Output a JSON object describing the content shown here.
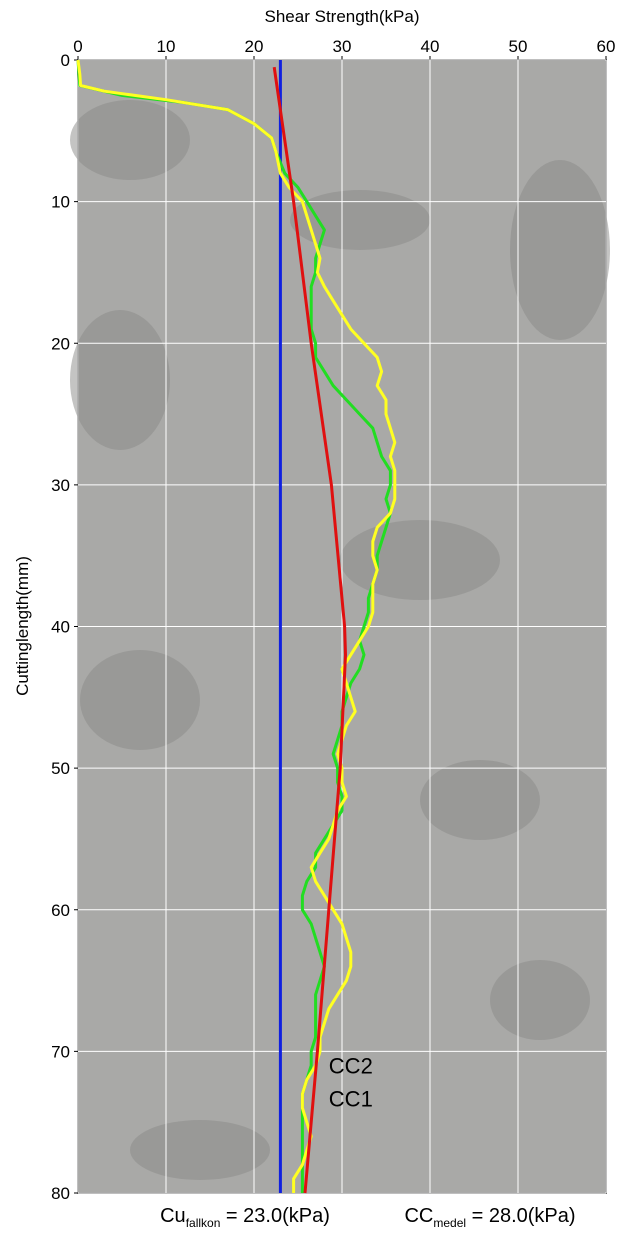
{
  "chart_data": {
    "type": "line",
    "x_label": "Shear Strength(kPa)",
    "y_label": "Cuttinglength(mm)",
    "xlim": [
      0,
      60
    ],
    "xticks": [
      0,
      10,
      20,
      30,
      40,
      50,
      60
    ],
    "ylim": [
      0,
      80
    ],
    "yticks": [
      0,
      10,
      20,
      30,
      40,
      50,
      60,
      70,
      80
    ],
    "y_inverted": true,
    "x_axis_position": "top",
    "grid": true,
    "series": [
      {
        "name": "CC2",
        "color": "#22dd22",
        "y": [
          0,
          1.8,
          2.5,
          3,
          3.5,
          4.5,
          5.5,
          6.5,
          8,
          9,
          10,
          11,
          12,
          13,
          14,
          15,
          16,
          17,
          18,
          19,
          20,
          21,
          22,
          23,
          24,
          25,
          26,
          27,
          28,
          29,
          30,
          31,
          32,
          33,
          34,
          35,
          36,
          37,
          38,
          39,
          40,
          41,
          42,
          43,
          44,
          45,
          46,
          47,
          48,
          49,
          50,
          51,
          52,
          53,
          54,
          55,
          56,
          57,
          58,
          59,
          60,
          61,
          62,
          63,
          64,
          65,
          66,
          67,
          68,
          69,
          70,
          71,
          72,
          73,
          74,
          75,
          76,
          77,
          78,
          79,
          80
        ],
        "x": [
          0,
          0.2,
          5,
          12,
          17,
          20,
          22,
          22.5,
          23.5,
          25,
          26,
          27,
          28,
          27.5,
          27,
          27,
          26.5,
          26.5,
          26.5,
          26.5,
          27,
          27,
          28,
          29,
          30.5,
          32,
          33.5,
          34,
          34.5,
          35.5,
          35.5,
          35,
          35.5,
          35,
          34.5,
          34,
          34,
          33.5,
          33,
          33,
          32.5,
          32,
          32.5,
          32,
          31,
          30.5,
          30,
          30,
          29.5,
          29,
          29.5,
          29.5,
          30,
          30,
          29,
          28,
          27,
          27,
          26,
          25.5,
          25.5,
          26.5,
          27,
          27.5,
          28,
          27.5,
          27,
          27,
          27,
          27,
          26.5,
          26.5,
          26,
          25.5,
          25.5,
          25.5,
          25.5,
          25.5,
          25.5,
          25.5,
          25.5
        ]
      },
      {
        "name": "CC1",
        "color": "#ffff22",
        "y": [
          0,
          1,
          1.8,
          2.2,
          2.8,
          3.5,
          4.5,
          5.5,
          6.5,
          8,
          9,
          10,
          11,
          12,
          13,
          14,
          15,
          16,
          17,
          18,
          19,
          20,
          21,
          22,
          23,
          24,
          25,
          26,
          27,
          28,
          29,
          30,
          31,
          32,
          33,
          34,
          35,
          36,
          37,
          38,
          39,
          40,
          41,
          42,
          43,
          44,
          45,
          46,
          47,
          48,
          49,
          50,
          51,
          52,
          53,
          54,
          55,
          56,
          57,
          58,
          59,
          60,
          61,
          62,
          63,
          64,
          65,
          66,
          67,
          68,
          69,
          70,
          71,
          72,
          73,
          74,
          75,
          76,
          77,
          78,
          79,
          80
        ],
        "x": [
          0,
          0.2,
          0.3,
          3,
          10,
          17,
          20,
          22,
          22.5,
          23,
          24,
          25.5,
          26,
          26.5,
          27,
          27.5,
          27.2,
          28,
          29,
          30,
          31,
          32.5,
          34,
          34.5,
          34,
          35,
          35,
          35.5,
          36,
          35.5,
          36,
          36,
          36,
          35.5,
          34,
          33.5,
          33.5,
          34,
          33.5,
          33.5,
          33.5,
          33,
          32,
          31,
          30,
          30.5,
          31,
          31.5,
          30.5,
          30,
          29.5,
          30,
          30,
          30.5,
          29.5,
          29,
          28.5,
          27.5,
          26.5,
          27,
          28,
          29,
          30,
          30.5,
          31,
          31,
          30.5,
          29.5,
          28.5,
          28,
          27.5,
          27.5,
          27,
          26,
          25.5,
          25.5,
          26,
          26.5,
          26,
          25.5,
          24.5,
          24.5
        ]
      }
    ],
    "model_curve": {
      "color": "#e01010",
      "y": [
        0.5,
        10,
        20,
        30,
        40,
        42,
        50,
        60,
        70,
        80
      ],
      "x": [
        22.3,
        24.5,
        26.5,
        28.8,
        30.3,
        30.4,
        29.8,
        28.5,
        27.2,
        25.8
      ]
    },
    "reference_line": {
      "value": 23,
      "color": "#1020e0"
    },
    "annotations": [
      {
        "main": "Cu",
        "sub": "fallkon",
        "rest": " = 23.0(kPa)",
        "color": "#1020e0"
      },
      {
        "main": "CC",
        "sub": "medel",
        "rest": " = 28.0(kPa)",
        "color": "#e01010"
      }
    ]
  }
}
